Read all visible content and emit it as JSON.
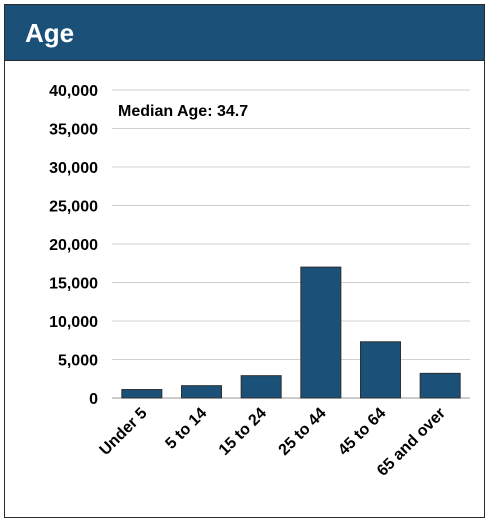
{
  "header": {
    "title": "Age"
  },
  "colors": {
    "header_bg": "#1b5179",
    "bar": "#1b5179",
    "bar_border": "#2e2e2e",
    "grid": "#d0d0d0"
  },
  "chart_data": {
    "type": "bar",
    "title": "Age",
    "xlabel": "",
    "ylabel": "",
    "categories": [
      "Under 5",
      "5 to 14",
      "15 to 24",
      "25 to 44",
      "45 to 64",
      "65 and over"
    ],
    "values": [
      1100,
      1600,
      2900,
      17000,
      7300,
      3200
    ],
    "ylim": [
      0,
      40000
    ],
    "yticks": [
      0,
      5000,
      10000,
      15000,
      20000,
      25000,
      30000,
      35000,
      40000
    ],
    "ytick_labels": [
      "0",
      "5,000",
      "10,000",
      "15,000",
      "20,000",
      "25,000",
      "30,000",
      "35,000",
      "40,000"
    ],
    "annotation": "Median Age: 34.7",
    "grid": true,
    "legend": "none"
  }
}
